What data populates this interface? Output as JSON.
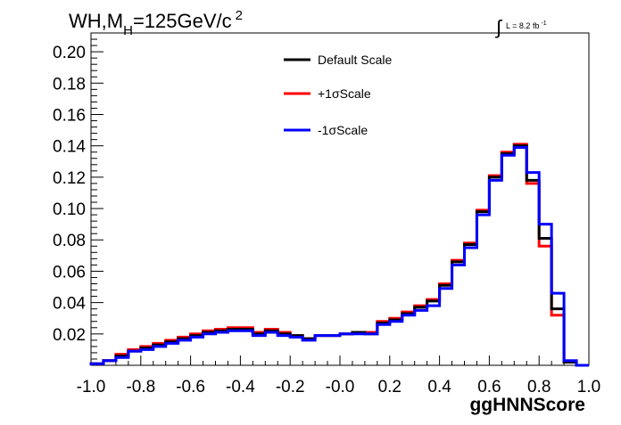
{
  "header": {
    "title_prefix": "WH,M",
    "title_sub": "H",
    "title_main": "=125GeV/c",
    "title_sup": "2",
    "lumi_symbol": "∫",
    "lumi_text": "L = 8.2 fb",
    "lumi_sup": "-1"
  },
  "colors": {
    "default_scale": "#000000",
    "plus_one_sigma": "#ff0000",
    "minus_one_sigma": "#0000ff"
  },
  "chart_data": {
    "type": "step",
    "xlabel": "ggHNNScore",
    "ylabel": "",
    "xlim": [
      -1.0,
      1.0
    ],
    "ylim": [
      0,
      0.212
    ],
    "x_ticks": [
      "-1.0",
      "-0.8",
      "-0.6",
      "-0.4",
      "-0.2",
      "-0.0",
      "0.2",
      "0.4",
      "0.6",
      "0.8",
      "1.0"
    ],
    "x_tick_values": [
      -1.0,
      -0.8,
      -0.6,
      -0.4,
      -0.2,
      0.0,
      0.2,
      0.4,
      0.6,
      0.8,
      1.0
    ],
    "y_ticks": [
      "0.02",
      "0.04",
      "0.06",
      "0.08",
      "0.10",
      "0.12",
      "0.14",
      "0.16",
      "0.18",
      "0.20"
    ],
    "y_tick_values": [
      0.02,
      0.04,
      0.06,
      0.08,
      0.1,
      0.12,
      0.14,
      0.16,
      0.18,
      0.2
    ],
    "bin_edges": [
      -1.0,
      -0.95,
      -0.9,
      -0.85,
      -0.8,
      -0.75,
      -0.7,
      -0.65,
      -0.6,
      -0.55,
      -0.5,
      -0.45,
      -0.4,
      -0.35,
      -0.3,
      -0.25,
      -0.2,
      -0.15,
      -0.1,
      -0.05,
      0.0,
      0.05,
      0.1,
      0.15,
      0.2,
      0.25,
      0.3,
      0.35,
      0.4,
      0.45,
      0.5,
      0.55,
      0.6,
      0.65,
      0.7,
      0.75,
      0.8,
      0.85,
      0.9,
      0.95,
      1.0
    ],
    "series": [
      {
        "name": "Default Scale",
        "color": "#000000",
        "values": [
          0.001,
          0.003,
          0.006,
          0.009,
          0.011,
          0.013,
          0.015,
          0.017,
          0.019,
          0.021,
          0.022,
          0.023,
          0.023,
          0.02,
          0.022,
          0.02,
          0.019,
          0.017,
          0.019,
          0.019,
          0.02,
          0.021,
          0.02,
          0.027,
          0.029,
          0.033,
          0.037,
          0.041,
          0.051,
          0.066,
          0.077,
          0.098,
          0.12,
          0.135,
          0.14,
          0.118,
          0.081,
          0.036,
          0.002,
          0.0
        ]
      },
      {
        "name": "+1σScale",
        "color": "#ff0000",
        "values": [
          0.001,
          0.003,
          0.007,
          0.01,
          0.012,
          0.014,
          0.016,
          0.018,
          0.02,
          0.022,
          0.023,
          0.024,
          0.024,
          0.021,
          0.023,
          0.021,
          0.019,
          0.017,
          0.019,
          0.019,
          0.02,
          0.021,
          0.021,
          0.028,
          0.03,
          0.034,
          0.038,
          0.042,
          0.052,
          0.067,
          0.078,
          0.099,
          0.121,
          0.136,
          0.141,
          0.116,
          0.076,
          0.032,
          0.002,
          0.0
        ]
      },
      {
        "name": "-1σScale",
        "color": "#0000ff",
        "values": [
          0.001,
          0.003,
          0.005,
          0.009,
          0.01,
          0.012,
          0.014,
          0.016,
          0.018,
          0.02,
          0.021,
          0.022,
          0.022,
          0.019,
          0.021,
          0.019,
          0.018,
          0.016,
          0.019,
          0.019,
          0.02,
          0.02,
          0.02,
          0.026,
          0.028,
          0.032,
          0.035,
          0.038,
          0.049,
          0.064,
          0.075,
          0.096,
          0.118,
          0.134,
          0.139,
          0.123,
          0.09,
          0.046,
          0.003,
          0.0
        ]
      }
    ]
  }
}
